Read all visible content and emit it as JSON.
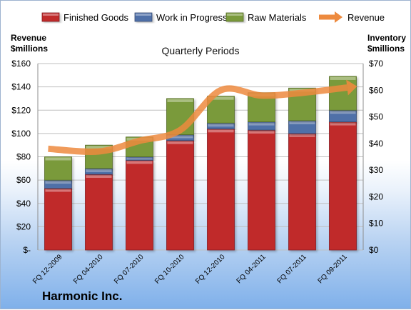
{
  "company": "Harmonic Inc.",
  "chart_data": {
    "type": "bar",
    "stacked": true,
    "title": "Quarterly Periods",
    "categories": [
      "FQ 12-2009",
      "FQ 04-2010",
      "FQ 07-2010",
      "FQ 10-2010",
      "FQ 12-2010",
      "FQ 04-2011",
      "FQ 07-2011",
      "FQ 09-2011"
    ],
    "series": [
      {
        "name": "Finished Goods",
        "color": "#c0292c",
        "axis": "left",
        "values": [
          53,
          65,
          77,
          94,
          104,
          103,
          100,
          110
        ]
      },
      {
        "name": "Work in Progress",
        "color": "#4f6fa8",
        "axis": "left",
        "values": [
          7,
          5,
          3,
          5,
          5,
          7,
          11,
          10
        ]
      },
      {
        "name": "Raw Materials",
        "color": "#7a9a3a",
        "axis": "left",
        "values": [
          20,
          20,
          17,
          31,
          23,
          25,
          28,
          29
        ]
      }
    ],
    "line_series": {
      "name": "Revenue",
      "color": "#ed8a3e",
      "axis": "right",
      "values": [
        38,
        37,
        41,
        45,
        60,
        58,
        59,
        61
      ]
    },
    "left_axis": {
      "label_line1": "Revenue",
      "label_line2": "$millions",
      "min": 0,
      "max": 160,
      "step": 20,
      "tick_labels": [
        "$-",
        "$20",
        "$40",
        "$60",
        "$80",
        "$100",
        "$120",
        "$140",
        "$160"
      ]
    },
    "right_axis": {
      "label_line1": "Inventory",
      "label_line2": "$millions",
      "min": 0,
      "max": 70,
      "step": 10,
      "tick_labels": [
        "$0",
        "$10",
        "$20",
        "$30",
        "$40",
        "$50",
        "$60",
        "$70"
      ]
    },
    "legend_position": "top",
    "grid": true
  }
}
